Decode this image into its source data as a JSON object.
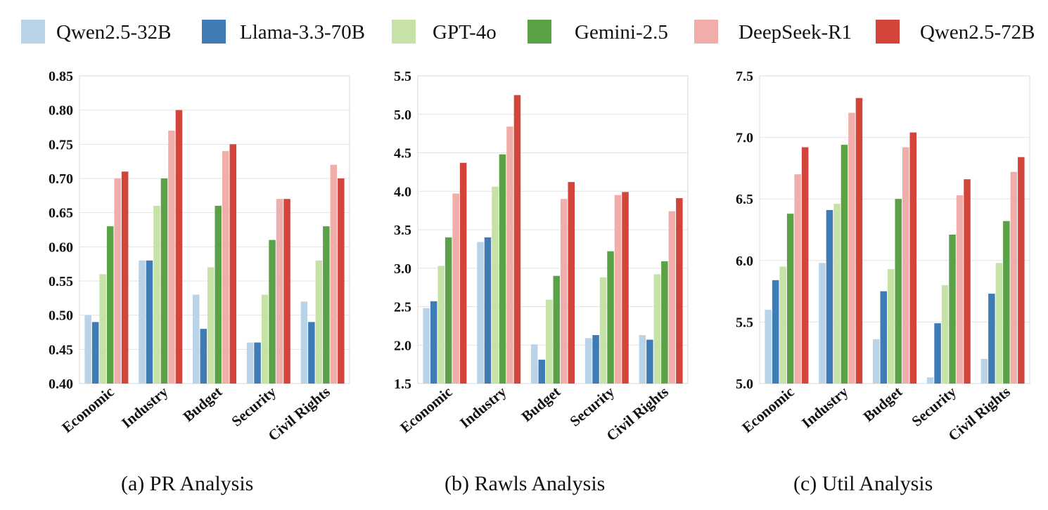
{
  "legend": [
    {
      "name": "Qwen2.5-32B",
      "color": "#b9d3e8"
    },
    {
      "name": "Llama-3.3-70B",
      "color": "#3f7bb5"
    },
    {
      "name": "GPT-4o",
      "color": "#c6e2a6"
    },
    {
      "name": "Gemini-2.5",
      "color": "#5aa148"
    },
    {
      "name": "DeepSeek-R1",
      "color": "#f0adaa"
    },
    {
      "name": "Qwen2.5-72B",
      "color": "#d3453b"
    }
  ],
  "captions": [
    "(a) PR Analysis",
    "(b) Rawls Analysis",
    "(c) Util Analysis"
  ],
  "chart_data": [
    {
      "type": "bar",
      "title": "(a) PR Analysis",
      "categories": [
        "Economic",
        "Industry",
        "Budget",
        "Security",
        "Civil Rights"
      ],
      "ylim": [
        0.4,
        0.85
      ],
      "yticks": [
        "0.40",
        "0.45",
        "0.50",
        "0.55",
        "0.60",
        "0.65",
        "0.70",
        "0.75",
        "0.80",
        "0.85"
      ],
      "grid": true,
      "legend": "top",
      "series": [
        {
          "name": "Qwen2.5-32B",
          "values": [
            0.5,
            0.58,
            0.53,
            0.46,
            0.52
          ]
        },
        {
          "name": "Llama-3.3-70B",
          "values": [
            0.49,
            0.58,
            0.48,
            0.46,
            0.49
          ]
        },
        {
          "name": "GPT-4o",
          "values": [
            0.56,
            0.66,
            0.57,
            0.53,
            0.58
          ]
        },
        {
          "name": "Gemini-2.5",
          "values": [
            0.63,
            0.7,
            0.66,
            0.61,
            0.63
          ]
        },
        {
          "name": "DeepSeek-R1",
          "values": [
            0.7,
            0.77,
            0.74,
            0.67,
            0.72
          ]
        },
        {
          "name": "Qwen2.5-72B",
          "values": [
            0.71,
            0.8,
            0.75,
            0.67,
            0.7
          ]
        }
      ]
    },
    {
      "type": "bar",
      "title": "(b) Rawls Analysis",
      "categories": [
        "Economic",
        "Industry",
        "Budget",
        "Security",
        "Civil Rights"
      ],
      "ylim": [
        1.5,
        5.5
      ],
      "yticks": [
        "1.5",
        "2.0",
        "2.5",
        "3.0",
        "3.5",
        "4.0",
        "4.5",
        "5.0",
        "5.5"
      ],
      "grid": true,
      "legend": "top",
      "series": [
        {
          "name": "Qwen2.5-32B",
          "values": [
            2.48,
            3.34,
            2.01,
            2.09,
            2.13
          ]
        },
        {
          "name": "Llama-3.3-70B",
          "values": [
            2.57,
            3.4,
            1.81,
            2.13,
            2.07
          ]
        },
        {
          "name": "GPT-4o",
          "values": [
            3.03,
            4.06,
            2.59,
            2.88,
            2.92
          ]
        },
        {
          "name": "Gemini-2.5",
          "values": [
            3.4,
            4.48,
            2.9,
            3.22,
            3.09
          ]
        },
        {
          "name": "DeepSeek-R1",
          "values": [
            3.97,
            4.84,
            3.9,
            3.95,
            3.74
          ]
        },
        {
          "name": "Qwen2.5-72B",
          "values": [
            4.37,
            5.25,
            4.12,
            3.99,
            3.91
          ]
        }
      ]
    },
    {
      "type": "bar",
      "title": "(c) Util Analysis",
      "categories": [
        "Economic",
        "Industry",
        "Budget",
        "Security",
        "Civil Rights"
      ],
      "ylim": [
        5.0,
        7.5
      ],
      "yticks": [
        "5.0",
        "5.5",
        "6.0",
        "6.5",
        "7.0",
        "7.5"
      ],
      "grid": true,
      "legend": "top",
      "series": [
        {
          "name": "Qwen2.5-32B",
          "values": [
            5.6,
            5.98,
            5.36,
            5.05,
            5.2
          ]
        },
        {
          "name": "Llama-3.3-70B",
          "values": [
            5.84,
            6.41,
            5.75,
            5.49,
            5.73
          ]
        },
        {
          "name": "GPT-4o",
          "values": [
            5.95,
            6.46,
            5.93,
            5.8,
            5.98
          ]
        },
        {
          "name": "Gemini-2.5",
          "values": [
            6.38,
            6.94,
            6.5,
            6.21,
            6.32
          ]
        },
        {
          "name": "DeepSeek-R1",
          "values": [
            6.7,
            7.2,
            6.92,
            6.53,
            6.72
          ]
        },
        {
          "name": "Qwen2.5-72B",
          "values": [
            6.92,
            7.32,
            7.04,
            6.66,
            6.84
          ]
        }
      ]
    }
  ]
}
